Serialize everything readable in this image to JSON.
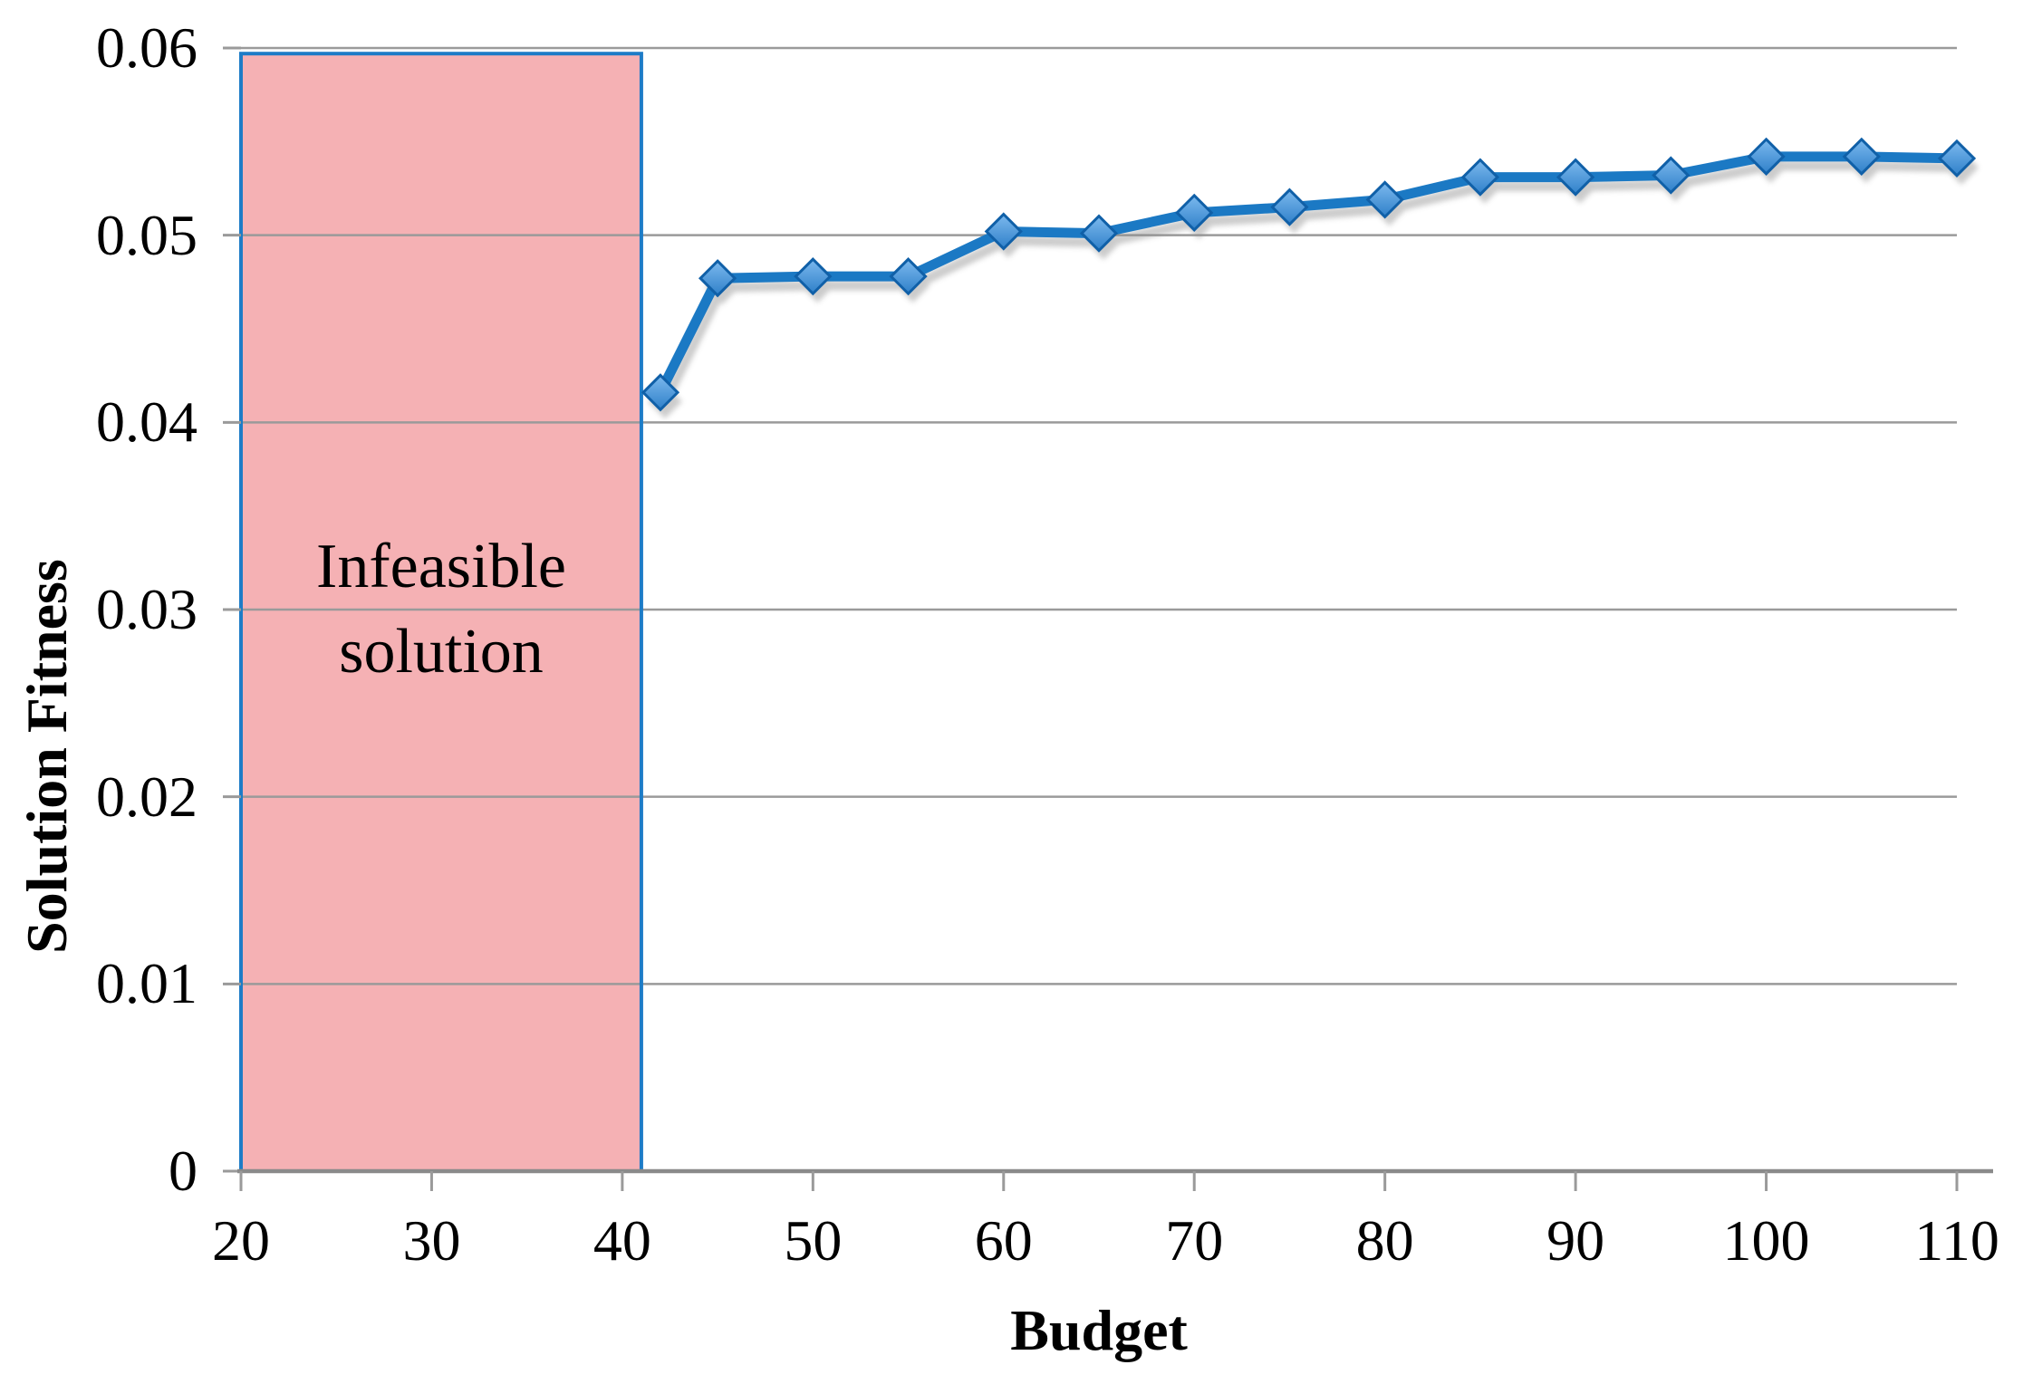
{
  "chart_data": {
    "type": "line",
    "title": "",
    "xlabel": "Budget",
    "ylabel": "Solution Fitness",
    "x": [
      42,
      45,
      50,
      55,
      60,
      65,
      70,
      75,
      80,
      85,
      90,
      95,
      100,
      105,
      110
    ],
    "y": [
      0.0416,
      0.0477,
      0.0478,
      0.0478,
      0.0502,
      0.0501,
      0.0512,
      0.0515,
      0.0519,
      0.0531,
      0.0531,
      0.0532,
      0.0542,
      0.0542,
      0.0541
    ],
    "xlim": [
      20,
      110
    ],
    "ylim": [
      0,
      0.06
    ],
    "x_ticks": [
      20,
      30,
      40,
      50,
      60,
      70,
      80,
      90,
      100,
      110
    ],
    "y_ticks": [
      0,
      0.01,
      0.02,
      0.03,
      0.04,
      0.05,
      0.06
    ],
    "y_tick_labels": [
      "0",
      "0.01",
      "0.02",
      "0.03",
      "0.04",
      "0.05",
      "0.06"
    ],
    "grid": "horizontal",
    "legend": "none",
    "annotation_region": {
      "label_lines": [
        "Infeasible",
        "solution"
      ],
      "x0": 20,
      "x1": 41,
      "y0": 0,
      "y1": 0.0597
    },
    "colors": {
      "line": "#1B79C4",
      "marker_fill_light": "#7CB9EE",
      "marker_fill_dark": "#2F80C9",
      "marker_border": "#1060A8",
      "region_fill": "#F5B1B4",
      "region_border": "#1E7CC7",
      "gridline": "#9A9A9A",
      "axis": "#8A8A8A",
      "text": "#000000",
      "shadow": "#8E8E8E"
    }
  }
}
